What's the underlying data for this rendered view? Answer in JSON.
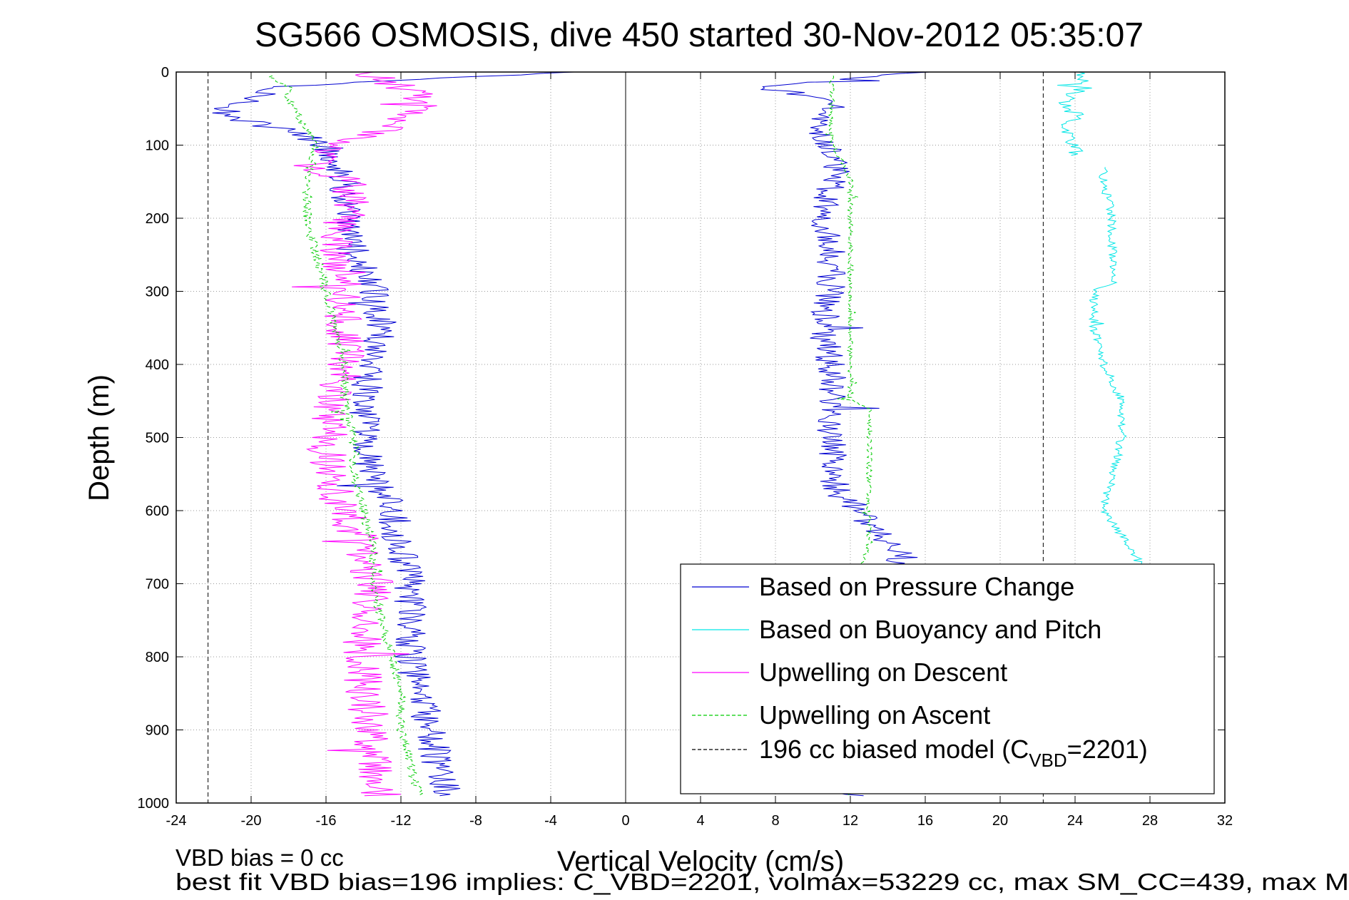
{
  "chart_data": {
    "type": "line",
    "title": "SG566 OSMOSIS, dive 450 started 30-Nov-2012 05:35:07",
    "xlabel": "Vertical Velocity (cm/s)",
    "ylabel": "Depth (m)",
    "xlim": [
      -24,
      32
    ],
    "ylim": [
      1000,
      0
    ],
    "y_reversed": true,
    "x_ticks": [
      "-24",
      "-20",
      "-16",
      "-12",
      "-8",
      "-4",
      "0",
      "4",
      "8",
      "12",
      "16",
      "20",
      "24",
      "28",
      "32"
    ],
    "y_ticks": [
      "0",
      "100",
      "200",
      "300",
      "400",
      "500",
      "600",
      "700",
      "800",
      "900",
      "1000"
    ],
    "grid": true,
    "legend_position": "bottom-right",
    "legend": [
      {
        "label": "Based on Pressure Change",
        "color": "#0000d0",
        "style": "solid"
      },
      {
        "label": "Based on Buoyancy and Pitch",
        "color": "#00e6e6",
        "style": "solid"
      },
      {
        "label": "Upwelling on Descent",
        "color": "#ff00ff",
        "style": "solid"
      },
      {
        "label": "Upwelling on Ascent",
        "color": "#00cc00",
        "style": "dashed"
      },
      {
        "label": "196 cc biased model (C",
        "sub": "VBD",
        "suffix": "=2201)",
        "color": "#000000",
        "style": "dashed"
      }
    ],
    "reference_lines": [
      {
        "x": -22.3,
        "style": "dashed"
      },
      {
        "x": 0,
        "style": "solid"
      },
      {
        "x": 22.3,
        "style": "dashed"
      }
    ],
    "series": [
      {
        "key": "pressure_descent",
        "color": "#0000d0",
        "depth": [
          0,
          20,
          40,
          60,
          80,
          100,
          120,
          150,
          200,
          250,
          300,
          350,
          400,
          450,
          500,
          550,
          600,
          650,
          700,
          750,
          800,
          850,
          900,
          950,
          990
        ],
        "values": [
          -3,
          -19,
          -20,
          -21.5,
          -18,
          -16,
          -15.5,
          -15,
          -15,
          -14.5,
          -13.5,
          -13,
          -13.5,
          -14,
          -14,
          -13.5,
          -12.5,
          -12,
          -11.5,
          -11.5,
          -11.5,
          -11,
          -10.5,
          -10,
          -9.5
        ]
      },
      {
        "key": "pressure_ascent",
        "color": "#0000d0",
        "depth": [
          990,
          950,
          900,
          850,
          800,
          750,
          700,
          660,
          640,
          620,
          600,
          580,
          550,
          500,
          450,
          400,
          350,
          300,
          250,
          200,
          150,
          120,
          100,
          80,
          60,
          40,
          20,
          0
        ],
        "values": [
          12,
          12,
          12,
          12,
          12,
          12,
          13,
          15,
          14,
          13,
          12.5,
          11.5,
          11,
          11,
          11,
          11,
          10.5,
          11,
          11,
          10.5,
          11,
          11.5,
          10.5,
          10,
          10.5,
          11.5,
          7,
          16
        ]
      },
      {
        "key": "buoyancy_pitch_descent",
        "color": "#00e6e6",
        "depth": [
          0,
          20,
          40,
          60,
          80,
          100,
          115
        ],
        "values": [
          24,
          24.5,
          23.5,
          24,
          23.5,
          24,
          24
        ]
      },
      {
        "key": "buoyancy_pitch_ascent",
        "color": "#00e6e6",
        "depth": [
          130,
          150,
          200,
          250,
          290,
          300,
          350,
          400,
          450,
          500,
          550,
          600,
          650,
          700
        ],
        "values": [
          25.5,
          25.5,
          26,
          26,
          26,
          25,
          25,
          25.5,
          26.5,
          26.5,
          26,
          25.5,
          27,
          28
        ]
      },
      {
        "key": "upwelling_descent",
        "color": "#ff00ff",
        "depth": [
          0,
          20,
          40,
          60,
          80,
          100,
          130,
          150,
          200,
          250,
          300,
          350,
          400,
          450,
          500,
          550,
          600,
          650,
          700,
          750,
          800,
          850,
          900,
          950,
          990
        ],
        "values": [
          -14,
          -12,
          -10.5,
          -12,
          -13,
          -15,
          -17,
          -14.5,
          -15,
          -15.5,
          -15,
          -15,
          -15,
          -15.5,
          -16,
          -16,
          -15,
          -14,
          -13.5,
          -14,
          -14,
          -14,
          -13.5,
          -13.5,
          -13
        ]
      },
      {
        "key": "upwelling_ascent",
        "color": "#00cc00",
        "depth": [
          990,
          950,
          900,
          850,
          800,
          750,
          700,
          650,
          600,
          550,
          500,
          450,
          400,
          350,
          300,
          250,
          200,
          150,
          100,
          60,
          40,
          20,
          5
        ],
        "values": [
          -11,
          -11.5,
          -12,
          -12,
          -12.5,
          -13,
          -13.5,
          -13.5,
          -14,
          -14.5,
          -14.5,
          -15,
          -15,
          -15.5,
          -16,
          -16.5,
          -17,
          -17,
          -16.5,
          -17.5,
          -18,
          -18,
          -19
        ]
      },
      {
        "key": "upwelling_ascent_right",
        "color": "#00cc00",
        "depth": [
          990,
          900,
          800,
          700,
          650,
          600,
          590,
          550,
          520,
          500,
          460,
          450,
          400,
          350,
          300,
          250,
          200,
          150,
          120,
          100,
          60,
          40,
          20,
          5
        ],
        "values": [
          12,
          12,
          12,
          12,
          13,
          13,
          13,
          13,
          13,
          13,
          13,
          12,
          12,
          12,
          12,
          12,
          12,
          12,
          11.5,
          11,
          11,
          11,
          11,
          11
        ]
      }
    ]
  },
  "footer": {
    "line1": "VBD bias = 0 cc",
    "line2": "best fit VBD bias=196 implies: C_VBD=2201, volmax=53229 cc, max SM_CC=439, max M"
  }
}
